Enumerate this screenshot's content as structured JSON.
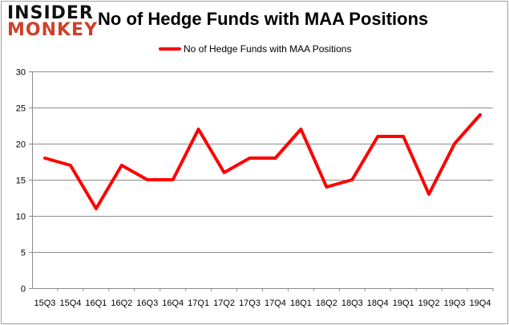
{
  "logo": {
    "line1": "INSIDER",
    "line2": "MONKEY"
  },
  "chart_data": {
    "type": "line",
    "title": "No of Hedge Funds with MAA Positions",
    "categories": [
      "15Q3",
      "15Q4",
      "16Q1",
      "16Q2",
      "16Q3",
      "16Q4",
      "17Q1",
      "17Q2",
      "17Q3",
      "17Q4",
      "18Q1",
      "18Q2",
      "18Q3",
      "18Q4",
      "19Q1",
      "19Q2",
      "19Q3",
      "19Q4"
    ],
    "series": [
      {
        "name": "No of Hedge Funds with MAA Positions",
        "color": "#ff0000",
        "values": [
          18,
          17,
          11,
          17,
          15,
          15,
          22,
          16,
          18,
          18,
          22,
          14,
          15,
          21,
          21,
          13,
          20,
          24
        ]
      }
    ],
    "yticks": [
      "0",
      "5",
      "10",
      "15",
      "20",
      "25",
      "30"
    ],
    "ylim": [
      0,
      30
    ],
    "grid": true,
    "legend": "top-center",
    "xlabel": "",
    "ylabel": ""
  }
}
